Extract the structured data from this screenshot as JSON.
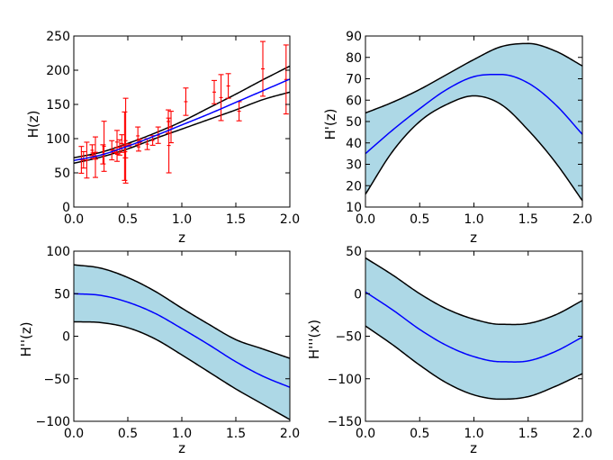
{
  "figure": {
    "background": "#ffffff"
  },
  "colors": {
    "band_fill": "#add8e6",
    "band_edge": "#000000",
    "mean": "#0000ff",
    "errorbar": "#ff0000",
    "axes": "#000000"
  },
  "chart_data": [
    {
      "id": "H",
      "type": "line",
      "xlabel": "z",
      "ylabel": "H(z)",
      "xlim": [
        0,
        2
      ],
      "ylim": [
        0,
        250
      ],
      "xticks": [
        0,
        0.5,
        1,
        1.5,
        2
      ],
      "xtick_labels": [
        "0.0",
        "0.5",
        "1.0",
        "1.5",
        "2.0"
      ],
      "yticks": [
        0,
        50,
        100,
        150,
        200,
        250
      ],
      "ytick_labels": [
        "0",
        "50",
        "100",
        "150",
        "200",
        "250"
      ],
      "band_filled": false,
      "series": [
        {
          "name": "upper",
          "role": "upper",
          "x": [
            0,
            0.25,
            0.5,
            0.75,
            1.0,
            1.25,
            1.5,
            1.75,
            2.0
          ],
          "y": [
            72,
            80,
            93,
            108,
            125,
            145,
            165,
            186,
            206
          ]
        },
        {
          "name": "mean",
          "role": "mean",
          "x": [
            0,
            0.25,
            0.5,
            0.75,
            1.0,
            1.25,
            1.5,
            1.75,
            2.0
          ],
          "y": [
            68,
            76,
            89,
            104,
            120,
            136,
            153,
            170,
            187
          ]
        },
        {
          "name": "lower",
          "role": "lower",
          "x": [
            0,
            0.25,
            0.5,
            0.75,
            1.0,
            1.25,
            1.5,
            1.75,
            2.0
          ],
          "y": [
            64,
            73,
            85,
            100,
            114,
            128,
            142,
            157,
            168
          ]
        }
      ],
      "observations": {
        "name": "H(z) data",
        "points": [
          {
            "x": 0.07,
            "y": 69,
            "err": 19.6
          },
          {
            "x": 0.09,
            "y": 69,
            "err": 12
          },
          {
            "x": 0.12,
            "y": 68.6,
            "err": 26.2
          },
          {
            "x": 0.17,
            "y": 83,
            "err": 8
          },
          {
            "x": 0.179,
            "y": 75,
            "err": 4
          },
          {
            "x": 0.199,
            "y": 75,
            "err": 5
          },
          {
            "x": 0.2,
            "y": 72.9,
            "err": 29.6
          },
          {
            "x": 0.27,
            "y": 77,
            "err": 14
          },
          {
            "x": 0.28,
            "y": 88.8,
            "err": 36.6
          },
          {
            "x": 0.352,
            "y": 83,
            "err": 14
          },
          {
            "x": 0.38,
            "y": 81.5,
            "err": 1.9
          },
          {
            "x": 0.4,
            "y": 95,
            "err": 17
          },
          {
            "x": 0.4004,
            "y": 77,
            "err": 10.2
          },
          {
            "x": 0.425,
            "y": 87.1,
            "err": 11.2
          },
          {
            "x": 0.445,
            "y": 92.8,
            "err": 12.9
          },
          {
            "x": 0.47,
            "y": 89,
            "err": 50
          },
          {
            "x": 0.4783,
            "y": 80.9,
            "err": 9
          },
          {
            "x": 0.48,
            "y": 97,
            "err": 62
          },
          {
            "x": 0.51,
            "y": 90.4,
            "err": 1.9
          },
          {
            "x": 0.593,
            "y": 104,
            "err": 13
          },
          {
            "x": 0.6,
            "y": 87.9,
            "err": 6.1
          },
          {
            "x": 0.61,
            "y": 97.3,
            "err": 2.1
          },
          {
            "x": 0.68,
            "y": 92,
            "err": 8
          },
          {
            "x": 0.73,
            "y": 97.3,
            "err": 7
          },
          {
            "x": 0.781,
            "y": 105,
            "err": 12
          },
          {
            "x": 0.875,
            "y": 125,
            "err": 17
          },
          {
            "x": 0.88,
            "y": 90,
            "err": 40
          },
          {
            "x": 0.9,
            "y": 117,
            "err": 23
          },
          {
            "x": 1.037,
            "y": 154,
            "err": 20
          },
          {
            "x": 1.3,
            "y": 168,
            "err": 17
          },
          {
            "x": 1.363,
            "y": 160,
            "err": 33.6
          },
          {
            "x": 1.43,
            "y": 177,
            "err": 18
          },
          {
            "x": 1.53,
            "y": 140,
            "err": 14
          },
          {
            "x": 1.75,
            "y": 202,
            "err": 40
          },
          {
            "x": 1.965,
            "y": 186.5,
            "err": 50.4
          }
        ]
      }
    },
    {
      "id": "dH",
      "type": "area",
      "xlabel": "z",
      "ylabel": "H'(z)",
      "xlim": [
        0,
        2
      ],
      "ylim": [
        10,
        90
      ],
      "xticks": [
        0,
        0.5,
        1,
        1.5,
        2
      ],
      "xtick_labels": [
        "0.0",
        "0.5",
        "1.0",
        "1.5",
        "2.0"
      ],
      "yticks": [
        10,
        20,
        30,
        40,
        50,
        60,
        70,
        80,
        90
      ],
      "ytick_labels": [
        "10",
        "20",
        "30",
        "40",
        "50",
        "60",
        "70",
        "80",
        "90"
      ],
      "band_filled": true,
      "series": [
        {
          "name": "upper",
          "role": "upper",
          "x": [
            0,
            0.25,
            0.5,
            0.75,
            1.0,
            1.25,
            1.5,
            1.75,
            2.0
          ],
          "y": [
            54,
            59,
            65,
            72,
            79,
            85,
            86.5,
            83,
            76
          ]
        },
        {
          "name": "mean",
          "role": "mean",
          "x": [
            0,
            0.25,
            0.5,
            0.75,
            1.0,
            1.25,
            1.5,
            1.75,
            2.0
          ],
          "y": [
            35,
            46,
            56,
            65,
            71,
            72,
            68,
            58,
            44
          ]
        },
        {
          "name": "lower",
          "role": "lower",
          "x": [
            0,
            0.25,
            0.5,
            0.75,
            1.0,
            1.25,
            1.5,
            1.75,
            2.0
          ],
          "y": [
            16,
            36,
            50,
            58,
            62,
            58,
            46,
            31,
            13
          ]
        }
      ]
    },
    {
      "id": "d2H",
      "type": "area",
      "xlabel": "z",
      "ylabel": "H''(z)",
      "xlim": [
        0,
        2
      ],
      "ylim": [
        -100,
        100
      ],
      "xticks": [
        0,
        0.5,
        1,
        1.5,
        2
      ],
      "xtick_labels": [
        "0.0",
        "0.5",
        "1.0",
        "1.5",
        "2.0"
      ],
      "yticks": [
        -100,
        -50,
        0,
        50,
        100
      ],
      "ytick_labels": [
        "−100",
        "−50",
        "0",
        "50",
        "100"
      ],
      "band_filled": true,
      "series": [
        {
          "name": "upper",
          "role": "upper",
          "x": [
            0,
            0.25,
            0.5,
            0.75,
            1.0,
            1.25,
            1.5,
            1.75,
            2.0
          ],
          "y": [
            84,
            80,
            69,
            53,
            33,
            14,
            -4,
            -15,
            -26
          ]
        },
        {
          "name": "mean",
          "role": "mean",
          "x": [
            0,
            0.25,
            0.5,
            0.75,
            1.0,
            1.25,
            1.5,
            1.75,
            2.0
          ],
          "y": [
            50,
            48,
            40,
            27,
            9,
            -10,
            -30,
            -47,
            -60
          ]
        },
        {
          "name": "lower",
          "role": "lower",
          "x": [
            0,
            0.25,
            0.5,
            0.75,
            1.0,
            1.25,
            1.5,
            1.75,
            2.0
          ],
          "y": [
            17,
            16,
            10,
            -3,
            -22,
            -42,
            -62,
            -80,
            -98
          ]
        }
      ]
    },
    {
      "id": "d3H",
      "type": "area",
      "xlabel": "z",
      "ylabel": "H'''(x)",
      "xlim": [
        0,
        2
      ],
      "ylim": [
        -150,
        50
      ],
      "xticks": [
        0,
        0.5,
        1,
        1.5,
        2
      ],
      "xtick_labels": [
        "0.0",
        "0.5",
        "1.0",
        "1.5",
        "2.0"
      ],
      "yticks": [
        -150,
        -100,
        -50,
        0,
        50
      ],
      "ytick_labels": [
        "−150",
        "−100",
        "−50",
        "0",
        "50"
      ],
      "band_filled": true,
      "series": [
        {
          "name": "upper",
          "role": "upper",
          "x": [
            0,
            0.25,
            0.5,
            0.75,
            1.0,
            1.25,
            1.5,
            1.75,
            2.0
          ],
          "y": [
            42,
            22,
            0,
            -18,
            -30,
            -36,
            -35,
            -25,
            -8
          ]
        },
        {
          "name": "mean",
          "role": "mean",
          "x": [
            0,
            0.25,
            0.5,
            0.75,
            1.0,
            1.25,
            1.5,
            1.75,
            2.0
          ],
          "y": [
            2,
            -19,
            -42,
            -61,
            -74,
            -80,
            -79,
            -68,
            -51
          ]
        },
        {
          "name": "lower",
          "role": "lower",
          "x": [
            0,
            0.25,
            0.5,
            0.75,
            1.0,
            1.25,
            1.5,
            1.75,
            2.0
          ],
          "y": [
            -38,
            -60,
            -84,
            -105,
            -119,
            -124,
            -121,
            -109,
            -94
          ]
        }
      ]
    }
  ]
}
